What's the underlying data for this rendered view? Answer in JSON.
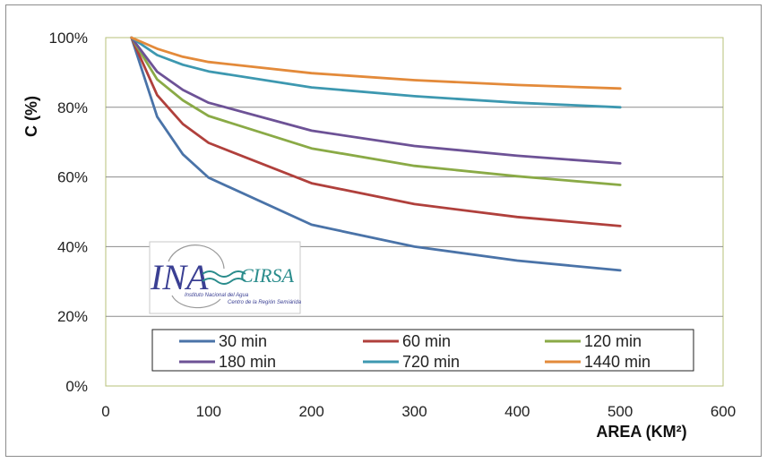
{
  "chart_data": {
    "type": "line",
    "title": "",
    "xlabel": "AREA (KM²)",
    "ylabel": "C (%)",
    "xlim": [
      0,
      600
    ],
    "ylim": [
      0,
      100
    ],
    "x_ticks": [
      "0",
      "100",
      "200",
      "300",
      "400",
      "500",
      "600"
    ],
    "y_ticks": [
      "0%",
      "20%",
      "40%",
      "60%",
      "80%",
      "100%"
    ],
    "grid": "horizontal",
    "legend_position": "bottom-inside",
    "x": [
      25,
      50,
      75,
      100,
      200,
      300,
      400,
      500
    ],
    "series": [
      {
        "name": "30 min",
        "color": "#4a73a8",
        "values": [
          100,
          77.3,
          66.5,
          59.8,
          46.3,
          40.0,
          36.0,
          33.2
        ]
      },
      {
        "name": "60 min",
        "color": "#b0403c",
        "values": [
          100,
          83.5,
          75.2,
          69.8,
          58.2,
          52.2,
          48.5,
          45.9
        ]
      },
      {
        "name": "120 min",
        "color": "#8aaa46",
        "values": [
          100,
          88.0,
          82.0,
          77.5,
          68.2,
          63.2,
          60.2,
          57.7
        ]
      },
      {
        "name": "180 min",
        "color": "#6d5296",
        "values": [
          100,
          90.2,
          85.0,
          81.3,
          73.3,
          68.9,
          66.1,
          63.9
        ]
      },
      {
        "name": "720 min",
        "color": "#3d98b0",
        "values": [
          100,
          95.0,
          92.2,
          90.3,
          85.7,
          83.2,
          81.3,
          80.0
        ]
      },
      {
        "name": "1440 min",
        "color": "#e38a3a",
        "values": [
          100,
          96.8,
          94.5,
          93.0,
          89.8,
          87.8,
          86.4,
          85.4
        ]
      }
    ]
  },
  "logo": {
    "name": "INA",
    "sub_name": "CIRSA",
    "line1": "Instituto Nacional del Agua",
    "line2": "Centro de la Región Semiárida"
  }
}
